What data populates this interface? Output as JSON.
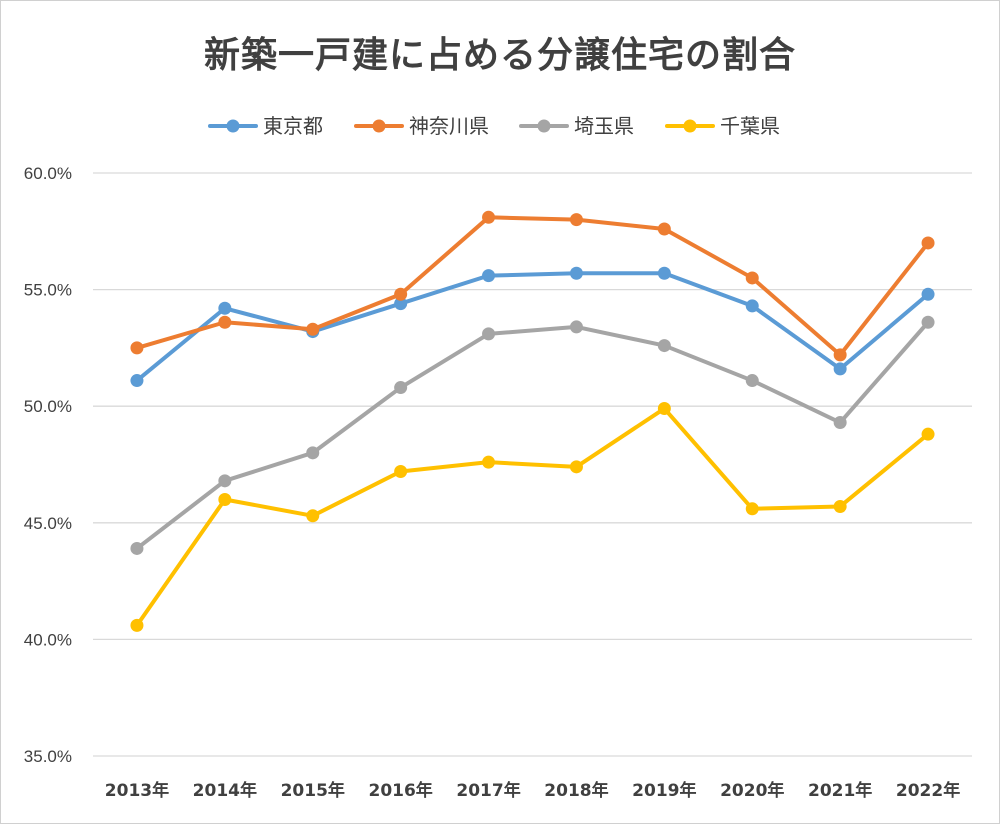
{
  "chart_data": {
    "type": "line",
    "title": "新築一戸建に占める分譲住宅の割合",
    "xlabel": "",
    "ylabel": "",
    "ylim": [
      35,
      60
    ],
    "y_ticks": [
      "35.0%",
      "40.0%",
      "45.0%",
      "50.0%",
      "55.0%",
      "60.0%"
    ],
    "y_tick_values": [
      35,
      40,
      45,
      50,
      55,
      60
    ],
    "categories": [
      "2013年",
      "2014年",
      "2015年",
      "2016年",
      "2017年",
      "2018年",
      "2019年",
      "2020年",
      "2021年",
      "2022年"
    ],
    "grid": true,
    "legend": "top",
    "series": [
      {
        "name": "東京都",
        "color": "#5B9BD5",
        "values": [
          51.1,
          54.2,
          53.2,
          54.4,
          55.6,
          55.7,
          55.7,
          54.3,
          51.6,
          54.8
        ]
      },
      {
        "name": "神奈川県",
        "color": "#ED7D31",
        "values": [
          52.5,
          53.6,
          53.3,
          54.8,
          58.1,
          58.0,
          57.6,
          55.5,
          52.2,
          57.0
        ]
      },
      {
        "name": "埼玉県",
        "color": "#A5A5A5",
        "values": [
          43.9,
          46.8,
          48.0,
          50.8,
          53.1,
          53.4,
          52.6,
          51.1,
          49.3,
          53.6
        ]
      },
      {
        "name": "千葉県",
        "color": "#FFC000",
        "values": [
          40.6,
          46.0,
          45.3,
          47.2,
          47.6,
          47.4,
          49.9,
          45.6,
          45.7,
          48.8
        ]
      }
    ]
  }
}
